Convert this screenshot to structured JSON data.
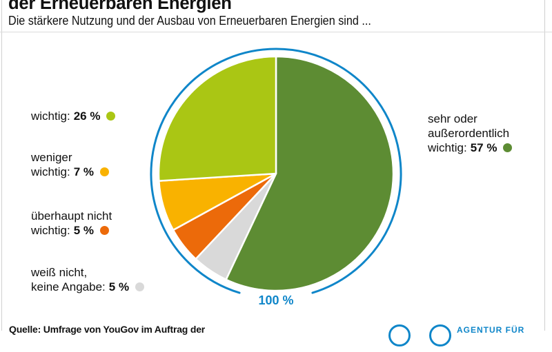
{
  "header": {
    "title_partial": "der Erneuerbaren Energien",
    "subtitle": "Die stärkere Nutzung und der Ausbau von Erneuerbaren Energien sind ..."
  },
  "chart_data": {
    "type": "pie",
    "unit": "%",
    "direction": "clockwise",
    "start_angle_deg": 0,
    "categories": [
      "sehr oder außerordentlich wichtig",
      "weiß nicht, keine Angabe",
      "überhaupt nicht wichtig",
      "weniger wichtig",
      "wichtig"
    ],
    "values": [
      57,
      5,
      5,
      7,
      26
    ],
    "colors": [
      "#5d8c33",
      "#d9d9d9",
      "#ec6a0a",
      "#f9b200",
      "#aac614"
    ],
    "ring_color": "#0f86c9",
    "total_label": "100 %",
    "legend_position": "sides"
  },
  "legend": {
    "items": [
      {
        "pre": [],
        "label": "wichtig:",
        "value": "26 %",
        "color": "#aac614"
      },
      {
        "pre": [
          "weniger"
        ],
        "label": "wichtig:",
        "value": "7 %",
        "color": "#f9b200"
      },
      {
        "pre": [
          "überhaupt nicht"
        ],
        "label": "wichtig:",
        "value": "5 %",
        "color": "#ec6a0a"
      },
      {
        "pre": [
          "weiß nicht,"
        ],
        "label": "keine Angabe:",
        "value": "5 %",
        "color": "#d9d9d9"
      },
      {
        "pre": [
          "sehr oder",
          "außerordentlich"
        ],
        "label": "wichtig:",
        "value": "57 %",
        "color": "#5d8c33"
      }
    ]
  },
  "footer": {
    "source": "Quelle: Umfrage von YouGov im Auftrag der",
    "logo_text": "AGENTUR FÜR"
  },
  "colors": {
    "accent_blue": "#0f86c9",
    "text": "#111111",
    "divider": "#dcdcdc"
  }
}
